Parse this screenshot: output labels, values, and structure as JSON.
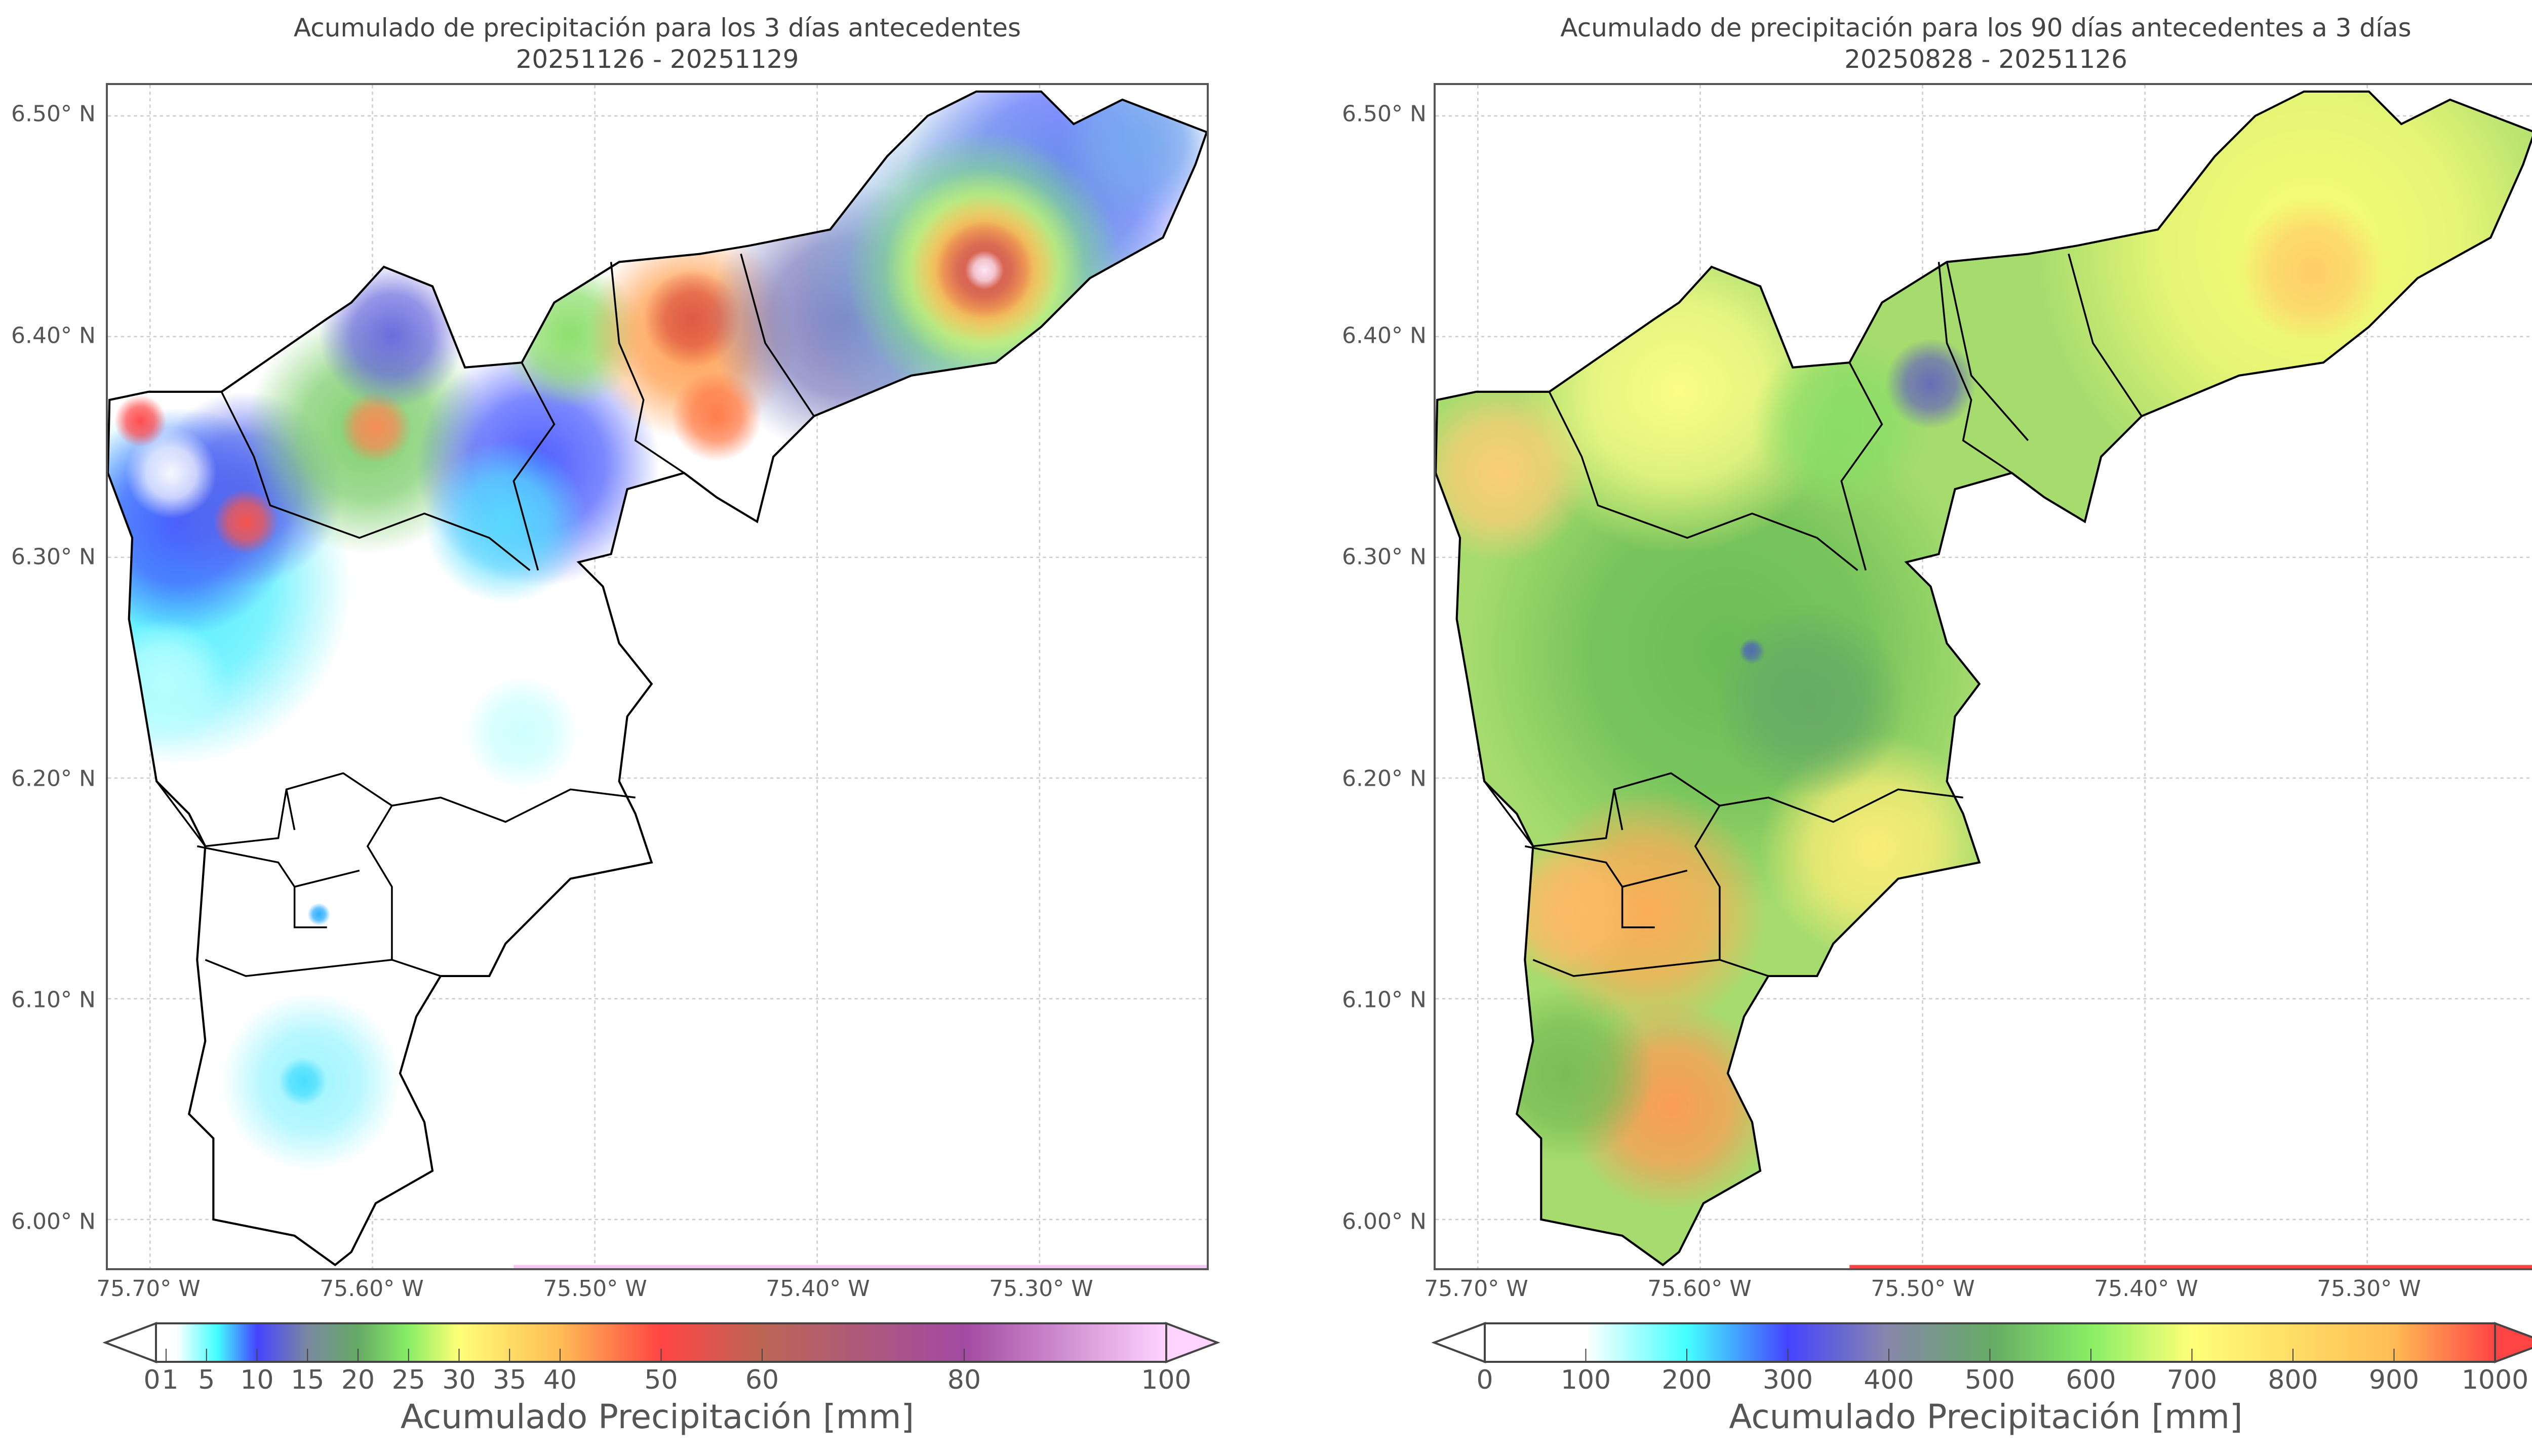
{
  "chart_data": [
    {
      "type": "heatmap",
      "title": "Acumulado de precipitación para los 3 días antecedentes",
      "subtitle": "20251126 - 20251129",
      "xticks": [
        "75.70° W",
        "75.60° W",
        "75.50° W",
        "75.40° W",
        "75.30° W"
      ],
      "yticks": [
        "6.50° N",
        "6.40° N",
        "6.30° N",
        "6.20° N",
        "6.10° N",
        "6.00° N"
      ],
      "colorbar": {
        "label": "Acumulado Precipitación [mm]",
        "ticks": [
          0,
          1,
          5,
          10,
          15,
          20,
          25,
          30,
          35,
          40,
          50,
          60,
          80,
          100
        ],
        "range": [
          0,
          100
        ],
        "extend": "both",
        "colors": [
          "#ffffff",
          "#ffffff",
          "#44ffff",
          "#4444ff",
          "#7a88a0",
          "#66aa66",
          "#88ee66",
          "#ffff77",
          "#ffbb55",
          "#ff4444",
          "#bb6655",
          "#a24aa2",
          "#ffd4ff"
        ],
        "stops": [
          0,
          0.02,
          0.06,
          0.1,
          0.15,
          0.2,
          0.25,
          0.3,
          0.4,
          0.5,
          0.6,
          0.8,
          1
        ]
      },
      "highlights": [
        "max ~90 mm near 75.32° W 6.43° N",
        "~50-60 mm near 75.45° W 6.41° N"
      ]
    },
    {
      "type": "heatmap",
      "title": "Acumulado de precipitación para los 90 días antecedentes a 3 días",
      "subtitle": "20250828 - 20251126",
      "xticks": [
        "75.70° W",
        "75.60° W",
        "75.50° W",
        "75.40° W",
        "75.30° W"
      ],
      "yticks": [
        "6.50° N",
        "6.40° N",
        "6.30° N",
        "6.20° N",
        "6.10° N",
        "6.00° N"
      ],
      "colorbar": {
        "label": "Acumulado Precipitación [mm]",
        "ticks": [
          0,
          100,
          200,
          300,
          400,
          500,
          600,
          700,
          800,
          900,
          1000
        ],
        "range": [
          0,
          1000
        ],
        "extend": "both",
        "colors": [
          "#ffffff",
          "#ffffff",
          "#44ffff",
          "#4444ff",
          "#8888aa",
          "#66aa66",
          "#88ee66",
          "#ffff77",
          "#ffdd66",
          "#ffbb55",
          "#ff4444"
        ],
        "stops": [
          0,
          0.1,
          0.2,
          0.3,
          0.4,
          0.5,
          0.6,
          0.7,
          0.8,
          0.9,
          1
        ]
      }
    }
  ]
}
